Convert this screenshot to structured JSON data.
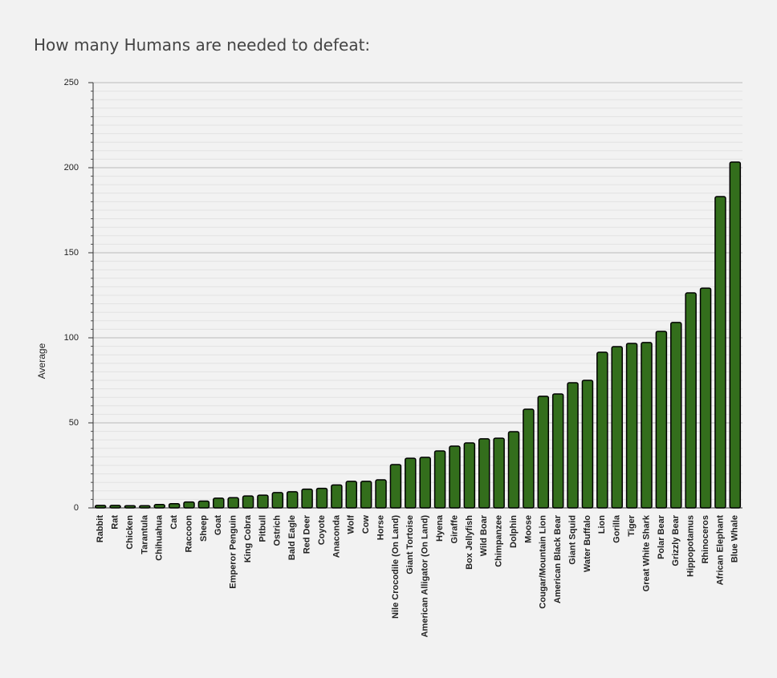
{
  "chart_data": {
    "type": "bar",
    "title": "How many Humans are needed to defeat:",
    "y_label": "Average",
    "categories": [
      "Rabbit",
      "Rat",
      "Chicken",
      "Tarantula",
      "Chihuahua",
      "Cat",
      "Raccoon",
      "Sheep",
      "Goat",
      "Emperor Penguin",
      "King Cobra",
      "Pitbull",
      "Ostrich",
      "Bald Eagle",
      "Red Deer",
      "Coyote",
      "Anaconda",
      "Wolf",
      "Cow",
      "Horse",
      "Nile Crocodile (On Land)",
      "Giant Tortoise",
      "American Alligator (On Land)",
      "Hyena",
      "Giraffe",
      "Box Jellyfish",
      "Wild Boar",
      "Chimpanzee",
      "Dolphin",
      "Moose",
      "Cougar/Mountain Lion",
      "American Black Bear",
      "Giant Squid",
      "Water Buffalo",
      "Lion",
      "Gorilla",
      "Tiger",
      "Great White Shark",
      "Polar Bear",
      "Grizzly Bear",
      "Hippopotamus",
      "Rhinoceros",
      "African Elephant",
      "Blue Whale"
    ],
    "values": [
      1.5,
      1.5,
      1.3,
      1.3,
      2,
      2.5,
      3.5,
      4,
      5.7,
      6,
      7,
      7.5,
      9,
      9.5,
      11,
      11.5,
      13.5,
      15.6,
      15.6,
      16.5,
      25.5,
      29.2,
      29.7,
      33.5,
      36.3,
      38.2,
      40.6,
      41,
      44.8,
      58,
      65.6,
      67,
      73.6,
      75,
      91.5,
      94.8,
      96.7,
      97.2,
      103.8,
      109,
      126.4,
      129.2,
      183,
      203.3
    ],
    "color": "#336e1c",
    "ylim": [
      0,
      250
    ],
    "yticks": [
      0,
      50,
      100,
      150,
      200,
      250
    ],
    "grid": true
  }
}
